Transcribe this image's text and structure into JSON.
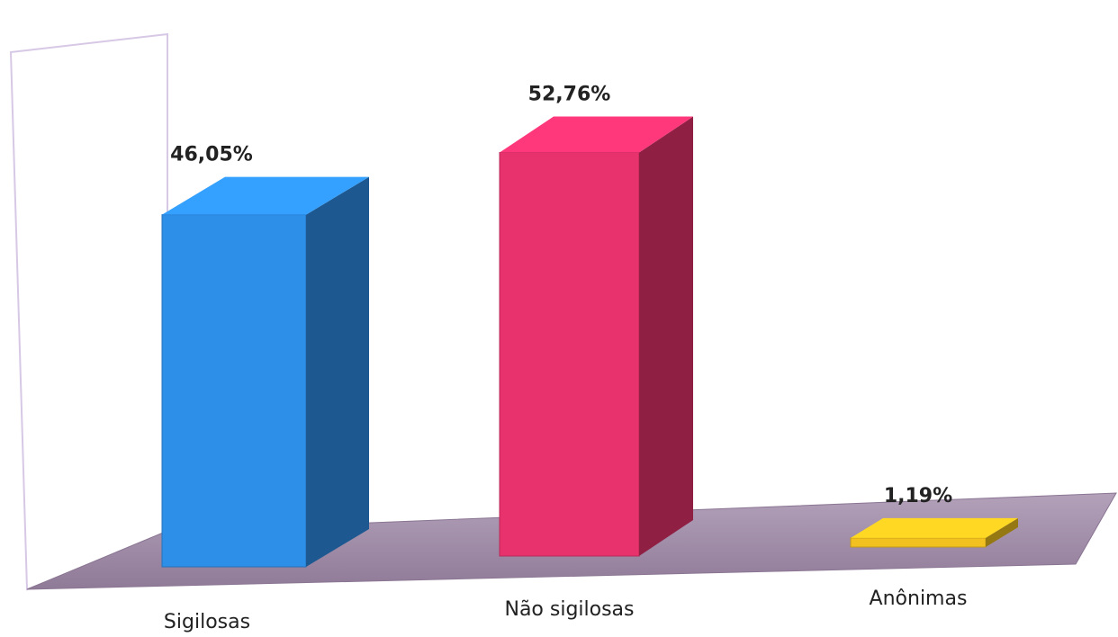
{
  "chart_data": {
    "type": "bar",
    "categories": [
      "Sigilosas",
      "Não sigilosas",
      "Anônimas"
    ],
    "values": [
      46.05,
      52.76,
      1.19
    ],
    "value_labels": [
      "46,05%",
      "52,76%",
      "1,19%"
    ],
    "colors": [
      "#2e8fe8",
      "#e8326e",
      "#f2c11f"
    ],
    "floor_color": "#9e8aa6",
    "title": "",
    "xlabel": "",
    "ylabel": "",
    "ylim": [
      0,
      60
    ],
    "grid": false,
    "legend": "none",
    "style": "3d-column"
  }
}
